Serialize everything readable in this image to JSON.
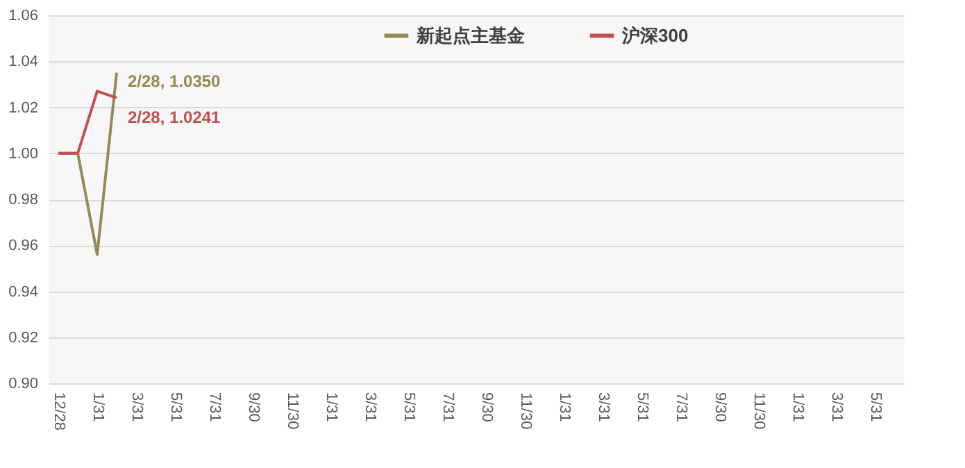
{
  "chart_data": {
    "type": "line",
    "categories": [
      "12/28",
      null,
      "1/31",
      null,
      "3/31",
      null,
      "5/31",
      null,
      "7/31",
      null,
      "9/30",
      null,
      "11/30",
      null,
      "1/31",
      null,
      "3/31",
      null,
      "5/31",
      null,
      "7/31",
      null,
      "9/30",
      null,
      "11/30",
      null,
      "1/31",
      null,
      "3/31",
      null,
      "5/31",
      null,
      "7/31",
      null,
      "9/30",
      null,
      "11/30",
      null,
      "1/31",
      null,
      "3/31",
      null,
      "5/31",
      null
    ],
    "series": [
      {
        "name": "新起点主基金",
        "color": "#948a54",
        "values": [
          1.0,
          1.0,
          0.956,
          1.035,
          null,
          null,
          null,
          null,
          null,
          null,
          null,
          null,
          null,
          null,
          null,
          null,
          null,
          null,
          null,
          null,
          null,
          null,
          null,
          null,
          null,
          null,
          null,
          null,
          null,
          null,
          null,
          null,
          null,
          null,
          null,
          null,
          null,
          null,
          null,
          null,
          null,
          null,
          null,
          null
        ],
        "value_labels": [
          null,
          null,
          null,
          "2/28, 1.0350",
          null,
          null,
          null,
          null,
          null,
          null,
          null,
          null,
          null,
          null,
          null,
          null,
          null,
          null,
          null,
          null,
          null,
          null,
          null,
          null,
          null,
          null,
          null,
          null,
          null,
          null,
          null,
          null,
          null,
          null,
          null,
          null,
          null,
          null,
          null,
          null,
          null,
          null,
          null,
          null
        ]
      },
      {
        "name": "沪深300",
        "color": "#c0504d",
        "values": [
          1.0,
          1.0,
          1.027,
          1.0241,
          null,
          null,
          null,
          null,
          null,
          null,
          null,
          null,
          null,
          null,
          null,
          null,
          null,
          null,
          null,
          null,
          null,
          null,
          null,
          null,
          null,
          null,
          null,
          null,
          null,
          null,
          null,
          null,
          null,
          null,
          null,
          null,
          null,
          null,
          null,
          null,
          null,
          null,
          null,
          null
        ],
        "value_labels": [
          null,
          null,
          null,
          "2/28, 1.0241",
          null,
          null,
          null,
          null,
          null,
          null,
          null,
          null,
          null,
          null,
          null,
          null,
          null,
          null,
          null,
          null,
          null,
          null,
          null,
          null,
          null,
          null,
          null,
          null,
          null,
          null,
          null,
          null,
          null,
          null,
          null,
          null,
          null,
          null,
          null,
          null,
          null,
          null,
          null,
          null
        ]
      }
    ],
    "ylim": [
      0.9,
      1.06
    ],
    "yticks": [
      {
        "value": 0.9,
        "label": "0.90"
      },
      0.92,
      0.94,
      0.96,
      0.98,
      {
        "value": 1.0,
        "label": "1.00"
      },
      1.02,
      1.04,
      1.06
    ],
    "grid": "y",
    "legend": "top",
    "marker": "none",
    "line_style": "solid"
  }
}
